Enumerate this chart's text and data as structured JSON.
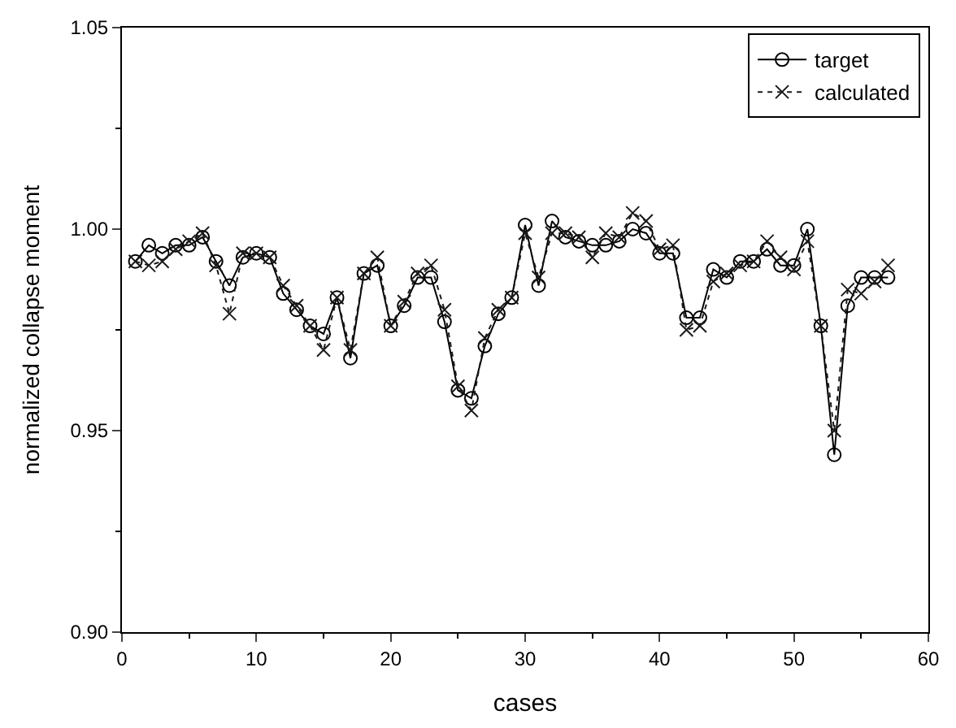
{
  "chart_data": {
    "type": "line",
    "xlabel": "cases",
    "ylabel": "normalized collapse moment",
    "x": [
      1,
      2,
      3,
      4,
      5,
      6,
      7,
      8,
      9,
      10,
      11,
      12,
      13,
      14,
      15,
      16,
      17,
      18,
      19,
      20,
      21,
      22,
      23,
      24,
      25,
      26,
      27,
      28,
      29,
      30,
      31,
      32,
      33,
      34,
      35,
      36,
      37,
      38,
      39,
      40,
      41,
      42,
      43,
      44,
      45,
      46,
      47,
      48,
      49,
      50,
      51,
      52,
      53,
      54,
      55,
      56,
      57
    ],
    "series": [
      {
        "name": "target",
        "color": "#000000",
        "marker": "circle",
        "line_style": "solid",
        "values": [
          0.992,
          0.996,
          0.994,
          0.996,
          0.996,
          0.998,
          0.992,
          0.986,
          0.993,
          0.994,
          0.993,
          0.984,
          0.98,
          0.976,
          0.974,
          0.983,
          0.968,
          0.989,
          0.991,
          0.976,
          0.981,
          0.988,
          0.988,
          0.977,
          0.96,
          0.958,
          0.971,
          0.979,
          0.983,
          1.001,
          0.986,
          1.002,
          0.998,
          0.997,
          0.996,
          0.996,
          0.997,
          1.0,
          0.999,
          0.994,
          0.994,
          0.978,
          0.978,
          0.99,
          0.988,
          0.992,
          0.992,
          0.995,
          0.991,
          0.991,
          1.0,
          0.976,
          0.944,
          0.981,
          0.988,
          0.988,
          0.988
        ]
      },
      {
        "name": "calculated",
        "color": "#1a1a1a",
        "marker": "cross",
        "line_style": "dotted",
        "values": [
          0.992,
          0.991,
          0.992,
          0.995,
          0.997,
          0.999,
          0.991,
          0.979,
          0.994,
          0.994,
          0.993,
          0.986,
          0.981,
          0.976,
          0.97,
          0.983,
          0.97,
          0.989,
          0.993,
          0.976,
          0.982,
          0.989,
          0.991,
          0.98,
          0.961,
          0.955,
          0.973,
          0.98,
          0.983,
          0.999,
          0.988,
          0.999,
          0.999,
          0.998,
          0.993,
          0.999,
          0.998,
          1.004,
          1.002,
          0.995,
          0.996,
          0.975,
          0.976,
          0.987,
          0.989,
          0.991,
          0.992,
          0.997,
          0.993,
          0.99,
          0.997,
          0.976,
          0.95,
          0.985,
          0.984,
          0.987,
          0.991
        ]
      }
    ],
    "xlim": [
      0,
      60
    ],
    "xticks": [
      0,
      10,
      20,
      30,
      40,
      50,
      60
    ],
    "ylim": [
      0.9,
      1.05
    ],
    "yticks": [
      {
        "value": 0.9,
        "label": "0.90"
      },
      {
        "value": 0.95,
        "label": "0.95"
      },
      {
        "value": 1.0,
        "label": "1.00"
      },
      {
        "value": 1.05,
        "label": "1.05"
      }
    ],
    "legend": "top right"
  }
}
